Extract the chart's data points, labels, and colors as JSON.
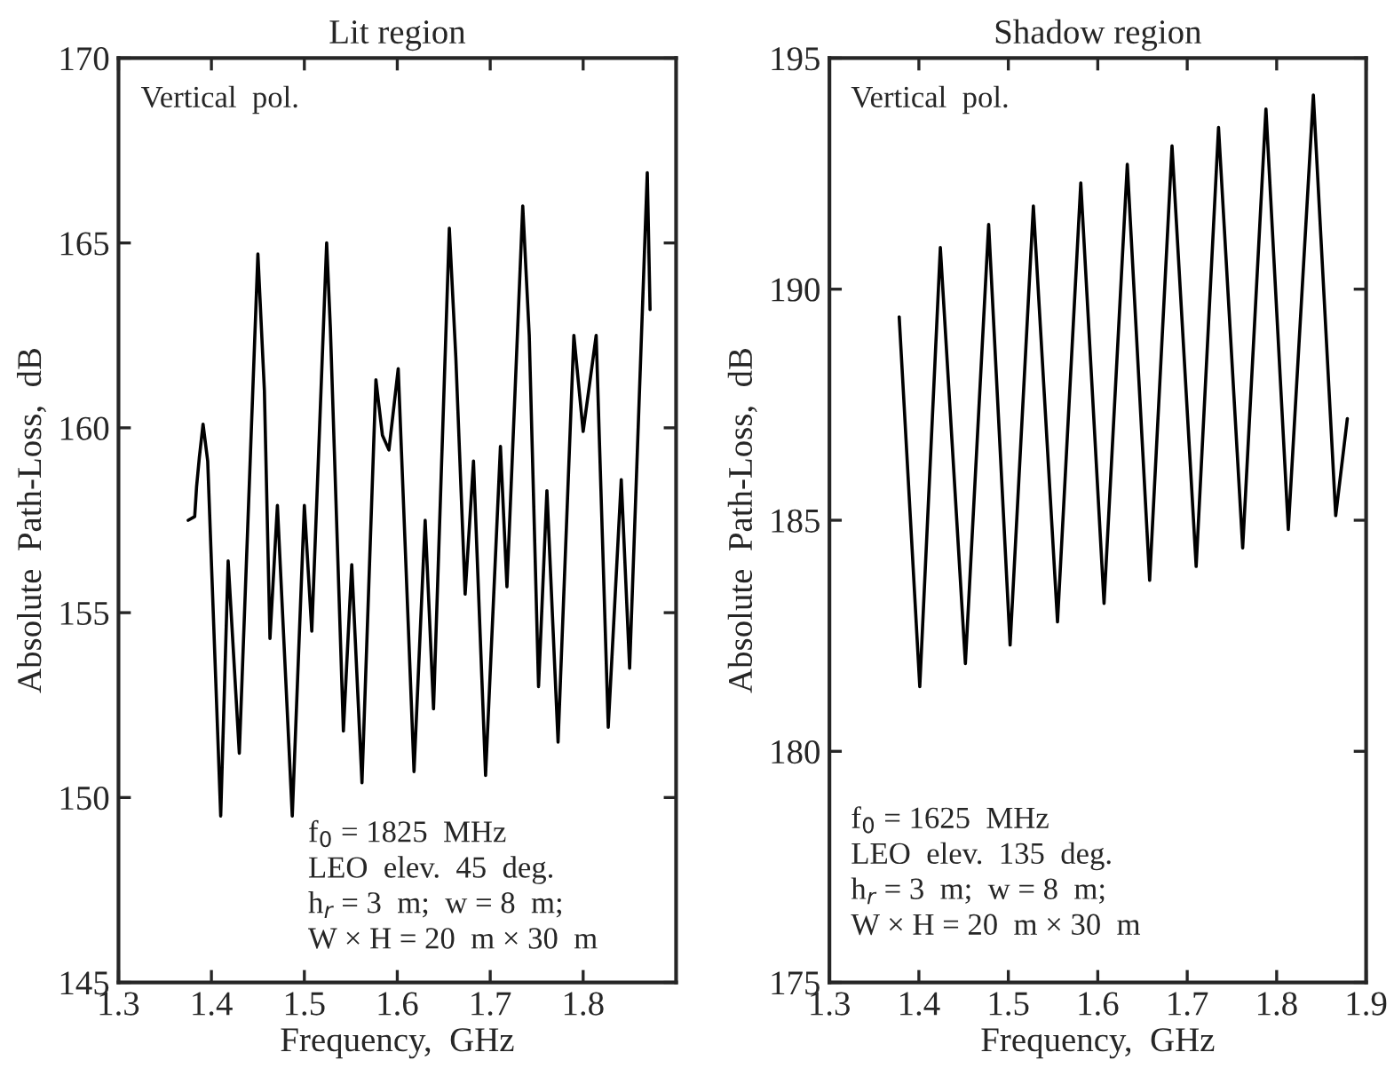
{
  "chart_data": [
    {
      "type": "line",
      "title": "Lit region",
      "xlabel": "Frequency,  GHz",
      "ylabel": "Absolute  Path-Loss,  dB",
      "xlim": [
        1.3,
        1.9
      ],
      "xticks": [
        1.3,
        1.4,
        1.5,
        1.6,
        1.7,
        1.8
      ],
      "ylim": [
        145,
        170
      ],
      "yticks": [
        145,
        150,
        155,
        160,
        165,
        170
      ],
      "annotations": [
        "Vertical  pol.",
        "f$_{0}$ = 1825  MHz\nLEO  elev.  45  deg.\nh$_{r}$ = 3  m;  w = 8  m;\nW × H = 20  m × 30  m"
      ],
      "grid": false,
      "legend": false,
      "marker": "none",
      "line_style": "solid",
      "series": [
        {
          "color": "#000000",
          "x": [
            1.375,
            1.382,
            1.384,
            1.387,
            1.391,
            1.396,
            1.41,
            1.418,
            1.43,
            1.45,
            1.457,
            1.463,
            1.471,
            1.487,
            1.5,
            1.508,
            1.524,
            1.528,
            1.542,
            1.551,
            1.562,
            1.577,
            1.584,
            1.591,
            1.601,
            1.618,
            1.63,
            1.639,
            1.656,
            1.663,
            1.673,
            1.682,
            1.695,
            1.711,
            1.718,
            1.735,
            1.742,
            1.752,
            1.761,
            1.773,
            1.79,
            1.8,
            1.814,
            1.827,
            1.841,
            1.85,
            1.869,
            1.872
          ],
          "values": [
            157.5,
            157.6,
            158.4,
            159.2,
            160.1,
            159.1,
            149.5,
            156.4,
            151.2,
            164.7,
            161.0,
            154.3,
            157.9,
            149.5,
            157.9,
            154.5,
            165.0,
            162.7,
            151.8,
            156.3,
            150.4,
            161.3,
            159.8,
            159.4,
            161.6,
            150.7,
            157.5,
            152.4,
            165.4,
            161.9,
            155.5,
            159.1,
            150.6,
            159.5,
            155.7,
            166.0,
            162.5,
            153.0,
            158.3,
            151.5,
            162.5,
            159.9,
            162.5,
            151.9,
            158.6,
            153.5,
            166.9,
            163.2
          ]
        }
      ]
    },
    {
      "type": "line",
      "title": "Shadow region",
      "xlabel": "Frequency,  GHz",
      "ylabel": "Absolute  Path-Loss,  dB",
      "xlim": [
        1.3,
        1.9
      ],
      "xticks": [
        1.3,
        1.4,
        1.5,
        1.6,
        1.7,
        1.8,
        1.9
      ],
      "ylim": [
        175,
        195
      ],
      "yticks": [
        175,
        180,
        185,
        190,
        195
      ],
      "annotations": [
        "Vertical  pol.",
        "f$_{0}$ = 1625  MHz\nLEO  elev.  135  deg.\nh$_{r}$ = 3  m;  w = 8  m;\nW × H = 20  m × 30  m"
      ],
      "grid": false,
      "legend": false,
      "marker": "none",
      "line_style": "solid",
      "series": [
        {
          "color": "#000000",
          "x": [
            1.378,
            1.401,
            1.424,
            1.452,
            1.478,
            1.502,
            1.528,
            1.555,
            1.581,
            1.607,
            1.633,
            1.658,
            1.683,
            1.71,
            1.735,
            1.762,
            1.788,
            1.813,
            1.841,
            1.866,
            1.879
          ],
          "values": [
            189.4,
            181.4,
            190.9,
            181.9,
            191.4,
            182.3,
            191.8,
            182.8,
            192.3,
            183.2,
            192.7,
            183.7,
            193.1,
            184.0,
            193.5,
            184.4,
            193.9,
            184.8,
            194.2,
            185.1,
            187.2
          ]
        }
      ]
    }
  ]
}
